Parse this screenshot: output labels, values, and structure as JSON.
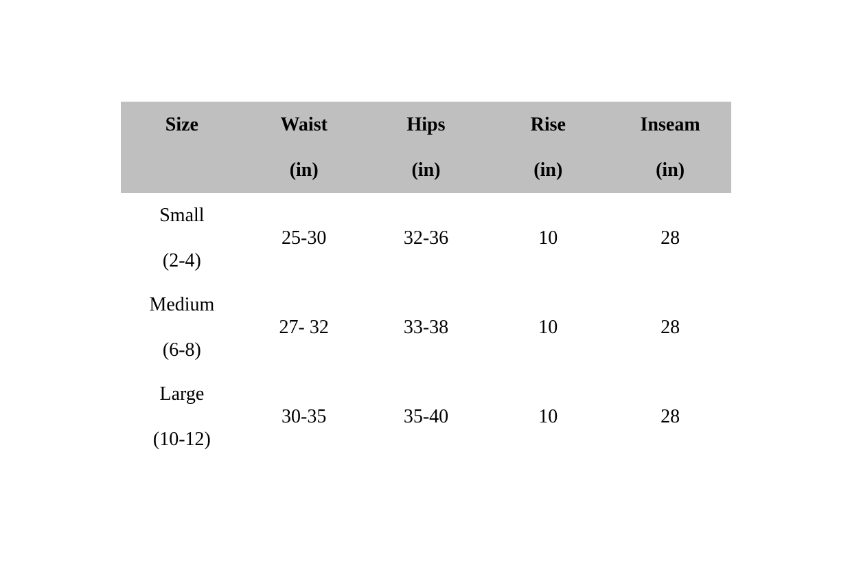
{
  "table": {
    "colors": {
      "header_bg": "#bfbfbf",
      "text": "#000000",
      "page_bg": "#ffffff"
    },
    "columns": [
      {
        "label": "Size",
        "unit": ""
      },
      {
        "label": "Waist",
        "unit": "(in)"
      },
      {
        "label": "Hips",
        "unit": "(in)"
      },
      {
        "label": "Rise",
        "unit": "(in)"
      },
      {
        "label": "Inseam",
        "unit": "(in)"
      }
    ],
    "rows": [
      {
        "size": "Small",
        "size_range": "(2-4)",
        "waist": "25-30",
        "hips": "32-36",
        "rise": "10",
        "inseam": "28"
      },
      {
        "size": "Medium",
        "size_range": "(6-8)",
        "waist": "27- 32",
        "hips": "33-38",
        "rise": "10",
        "inseam": "28"
      },
      {
        "size": "Large",
        "size_range": "(10-12)",
        "waist": "30-35",
        "hips": "35-40",
        "rise": "10",
        "inseam": "28"
      }
    ]
  }
}
